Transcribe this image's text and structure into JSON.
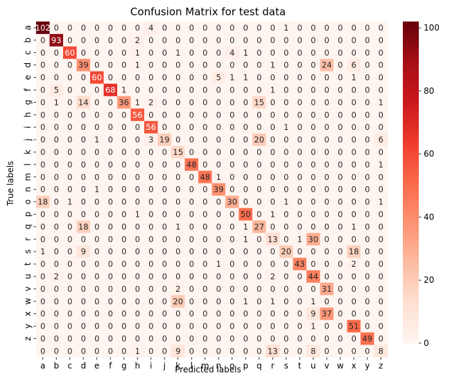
{
  "chart_data": {
    "type": "heatmap",
    "title": "Confusion Matrix for test data",
    "xlabel": "Predicted labels",
    "ylabel": "True labels",
    "x_categories": [
      "a",
      "b",
      "c",
      "d",
      "e",
      "f",
      "g",
      "h",
      "i",
      "j",
      "k",
      "l",
      "m",
      "n",
      "o",
      "p",
      "q",
      "r",
      "s",
      "t",
      "u",
      "v",
      "w",
      "x",
      "y",
      "z"
    ],
    "y_categories": [
      "a",
      "b",
      "c",
      "d",
      "e",
      "f",
      "g",
      "h",
      "i",
      "j",
      "k",
      "l",
      "m",
      "n",
      "o",
      "p",
      "q",
      "r",
      "s",
      "t",
      "u",
      "v",
      "w",
      "x",
      "y",
      "z"
    ],
    "values": [
      [
        102,
        0,
        0,
        0,
        0,
        0,
        0,
        0,
        4,
        0,
        0,
        0,
        0,
        0,
        0,
        0,
        0,
        0,
        1,
        0,
        0,
        0,
        0,
        0,
        0,
        0
      ],
      [
        0,
        93,
        0,
        0,
        0,
        0,
        0,
        2,
        0,
        0,
        0,
        0,
        0,
        0,
        0,
        0,
        0,
        0,
        0,
        0,
        0,
        0,
        0,
        0,
        0,
        0
      ],
      [
        0,
        0,
        60,
        0,
        0,
        0,
        0,
        1,
        0,
        0,
        1,
        0,
        0,
        0,
        4,
        1,
        0,
        0,
        0,
        0,
        0,
        0,
        0,
        0,
        0,
        0
      ],
      [
        0,
        0,
        0,
        39,
        0,
        0,
        0,
        1,
        0,
        0,
        0,
        0,
        0,
        0,
        0,
        0,
        0,
        1,
        0,
        0,
        0,
        24,
        0,
        6,
        0,
        0
      ],
      [
        0,
        0,
        0,
        0,
        60,
        0,
        0,
        0,
        0,
        0,
        0,
        0,
        0,
        5,
        1,
        1,
        0,
        0,
        0,
        0,
        0,
        0,
        0,
        1,
        0,
        0
      ],
      [
        0,
        5,
        0,
        0,
        0,
        68,
        1,
        0,
        0,
        0,
        0,
        0,
        0,
        0,
        0,
        0,
        0,
        1,
        0,
        0,
        0,
        0,
        0,
        0,
        0,
        0
      ],
      [
        0,
        1,
        0,
        14,
        0,
        0,
        36,
        1,
        2,
        0,
        0,
        0,
        0,
        0,
        0,
        0,
        15,
        0,
        0,
        0,
        0,
        0,
        0,
        0,
        0,
        1
      ],
      [
        0,
        0,
        0,
        0,
        0,
        0,
        0,
        56,
        0,
        0,
        0,
        0,
        0,
        0,
        0,
        0,
        0,
        0,
        0,
        0,
        0,
        0,
        0,
        0,
        0,
        0
      ],
      [
        0,
        0,
        0,
        0,
        0,
        0,
        0,
        0,
        56,
        0,
        0,
        0,
        0,
        0,
        0,
        0,
        0,
        0,
        1,
        0,
        0,
        0,
        0,
        0,
        0,
        0
      ],
      [
        0,
        0,
        0,
        0,
        1,
        0,
        0,
        0,
        3,
        19,
        0,
        0,
        0,
        0,
        0,
        0,
        20,
        0,
        0,
        0,
        0,
        0,
        0,
        0,
        0,
        6
      ],
      [
        0,
        0,
        0,
        0,
        0,
        0,
        0,
        0,
        0,
        0,
        15,
        0,
        0,
        0,
        0,
        0,
        0,
        0,
        0,
        0,
        0,
        0,
        0,
        0,
        0,
        0
      ],
      [
        0,
        0,
        0,
        0,
        0,
        0,
        0,
        0,
        0,
        0,
        0,
        48,
        0,
        0,
        0,
        0,
        0,
        0,
        0,
        0,
        0,
        0,
        0,
        0,
        0,
        1
      ],
      [
        0,
        0,
        0,
        0,
        0,
        0,
        0,
        0,
        0,
        0,
        0,
        0,
        48,
        1,
        0,
        0,
        0,
        0,
        0,
        0,
        0,
        0,
        0,
        0,
        0,
        0
      ],
      [
        0,
        0,
        0,
        0,
        1,
        0,
        0,
        0,
        0,
        0,
        0,
        0,
        0,
        39,
        0,
        0,
        0,
        0,
        0,
        0,
        0,
        0,
        0,
        0,
        0,
        0
      ],
      [
        18,
        0,
        1,
        0,
        0,
        0,
        0,
        0,
        0,
        0,
        0,
        0,
        0,
        0,
        30,
        0,
        0,
        0,
        1,
        0,
        0,
        0,
        0,
        0,
        0,
        1
      ],
      [
        0,
        0,
        0,
        0,
        0,
        0,
        0,
        1,
        0,
        0,
        0,
        0,
        0,
        0,
        0,
        50,
        0,
        1,
        0,
        0,
        0,
        0,
        0,
        0,
        0,
        0
      ],
      [
        0,
        0,
        0,
        18,
        0,
        0,
        0,
        0,
        0,
        0,
        1,
        0,
        0,
        0,
        0,
        1,
        27,
        0,
        0,
        0,
        0,
        0,
        0,
        1,
        0,
        0
      ],
      [
        0,
        0,
        0,
        0,
        0,
        0,
        0,
        0,
        0,
        0,
        0,
        0,
        0,
        0,
        0,
        1,
        0,
        13,
        0,
        1,
        30,
        0,
        0,
        0,
        0,
        0
      ],
      [
        1,
        0,
        0,
        9,
        0,
        0,
        0,
        0,
        0,
        0,
        0,
        0,
        0,
        0,
        0,
        0,
        0,
        0,
        20,
        0,
        0,
        0,
        0,
        18,
        0,
        0
      ],
      [
        0,
        0,
        0,
        0,
        0,
        0,
        0,
        0,
        0,
        0,
        0,
        0,
        0,
        1,
        0,
        0,
        0,
        0,
        0,
        43,
        0,
        0,
        0,
        2,
        0,
        0
      ],
      [
        0,
        2,
        0,
        0,
        0,
        0,
        0,
        0,
        0,
        0,
        0,
        0,
        0,
        0,
        0,
        0,
        0,
        2,
        0,
        0,
        44,
        0,
        0,
        0,
        0,
        0
      ],
      [
        0,
        0,
        0,
        0,
        0,
        0,
        0,
        0,
        0,
        0,
        2,
        0,
        0,
        0,
        0,
        0,
        0,
        0,
        0,
        0,
        0,
        31,
        0,
        0,
        0,
        0
      ],
      [
        0,
        0,
        0,
        0,
        0,
        0,
        0,
        0,
        0,
        0,
        20,
        0,
        0,
        0,
        0,
        1,
        0,
        1,
        0,
        0,
        1,
        0,
        0,
        0,
        0,
        0
      ],
      [
        0,
        0,
        0,
        0,
        0,
        0,
        0,
        0,
        0,
        0,
        0,
        0,
        0,
        0,
        0,
        0,
        0,
        0,
        0,
        0,
        9,
        37,
        0,
        0,
        0,
        0
      ],
      [
        0,
        0,
        0,
        0,
        0,
        0,
        0,
        0,
        0,
        0,
        0,
        0,
        0,
        0,
        0,
        0,
        0,
        0,
        0,
        0,
        1,
        0,
        0,
        51,
        0,
        0
      ],
      [
        0,
        0,
        0,
        0,
        0,
        0,
        0,
        0,
        0,
        0,
        0,
        0,
        0,
        0,
        0,
        0,
        0,
        0,
        0,
        0,
        0,
        0,
        0,
        0,
        49,
        0
      ]
    ],
    "extra_bottom_row": [
      0,
      0,
      0,
      0,
      0,
      0,
      0,
      1,
      0,
      0,
      9,
      0,
      0,
      0,
      0,
      0,
      0,
      13,
      0,
      0,
      8,
      0,
      0,
      0,
      0,
      8
    ],
    "colorbar": {
      "min": 0,
      "max": 102,
      "ticks": [
        0,
        20,
        40,
        60,
        80,
        100
      ],
      "colormap": "Reds",
      "low_color": "#fff5f0",
      "high_color": "#67000d"
    },
    "grid": false,
    "legend": "colorbar-right"
  }
}
